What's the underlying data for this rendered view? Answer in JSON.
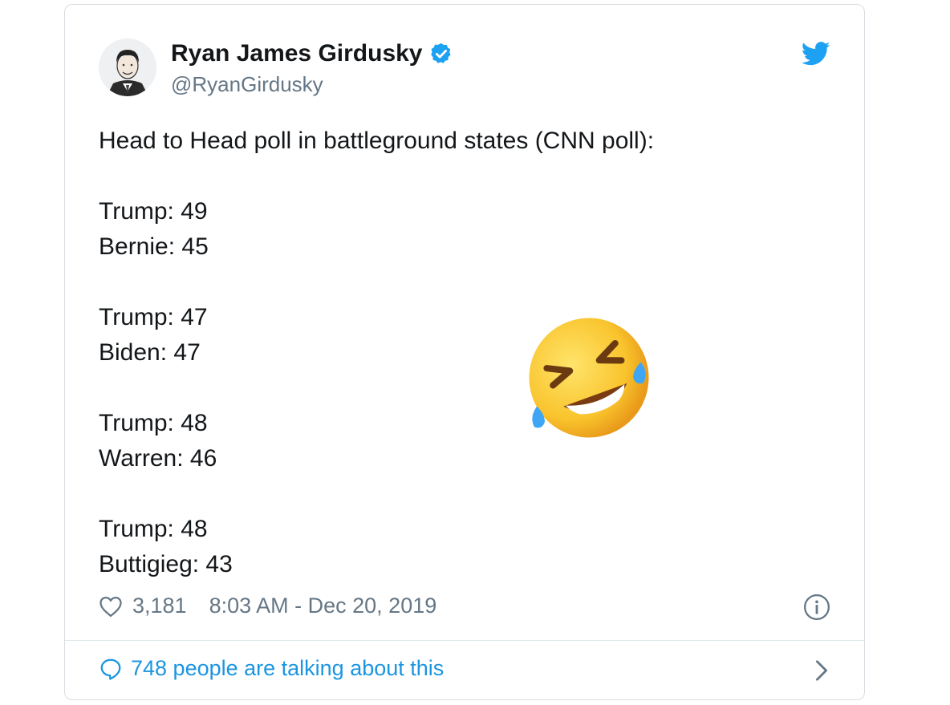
{
  "author": {
    "name": "Ryan James Girdusky",
    "handle": "@RyanGirdusky"
  },
  "tweet": {
    "lines": [
      "Head to Head poll in battleground states (CNN poll):",
      "",
      "Trump: 49",
      "Bernie: 45",
      "",
      "Trump: 47",
      "Biden: 47",
      "",
      "Trump: 48",
      "Warren: 46",
      "",
      "Trump: 48",
      "Buttigieg: 43"
    ],
    "emoji": "rolling-on-the-floor-laughing"
  },
  "meta": {
    "likes": "3,181",
    "timestamp": "8:03 AM - Dec 20, 2019"
  },
  "footer": {
    "talking": "748 people are talking about this"
  },
  "colors": {
    "link_blue": "#1b95e0",
    "verified_blue": "#1da1f2",
    "muted_gray": "#657786",
    "text": "#14171a"
  }
}
